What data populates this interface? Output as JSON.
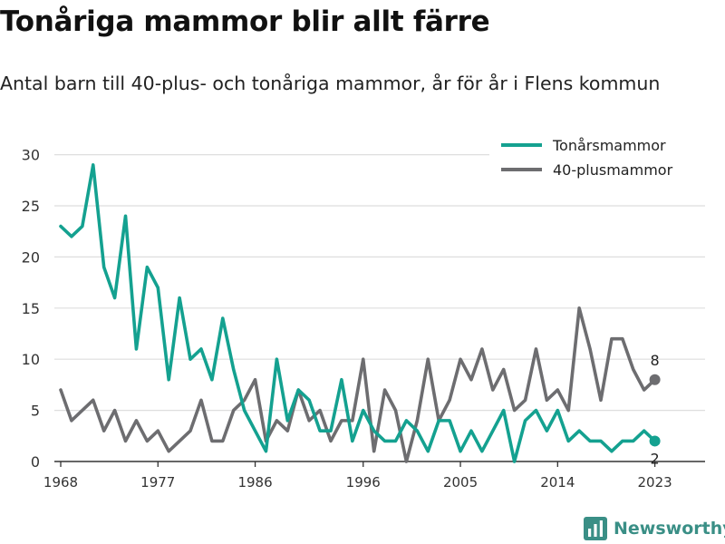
{
  "header": {
    "title": "Tonåriga mammor blir allt färre",
    "subtitle": "Antal barn till 40-plus- och tonåriga mammor, år för år i Flens kommun"
  },
  "brand": {
    "name": "Newsworthy",
    "icon": "bar-chart-logo-icon"
  },
  "colors": {
    "teen": "#14a190",
    "forty": "#6d6d70",
    "grid": "#dedede",
    "axis": "#333333"
  },
  "chart_data": {
    "type": "line",
    "x": [
      1968,
      1969,
      1970,
      1971,
      1972,
      1973,
      1974,
      1975,
      1976,
      1977,
      1978,
      1979,
      1980,
      1981,
      1982,
      1983,
      1984,
      1985,
      1986,
      1987,
      1988,
      1989,
      1990,
      1991,
      1992,
      1993,
      1994,
      1995,
      1996,
      1997,
      1998,
      1999,
      2000,
      2001,
      2002,
      2003,
      2004,
      2005,
      2006,
      2007,
      2008,
      2009,
      2010,
      2011,
      2012,
      2013,
      2014,
      2015,
      2016,
      2017,
      2018,
      2019,
      2020,
      2021,
      2022,
      2023,
      2024
    ],
    "series": [
      {
        "name": "Tonårsmammor",
        "color": "#14a190",
        "values": [
          23,
          22,
          23,
          29,
          19,
          16,
          24,
          11,
          19,
          17,
          8,
          16,
          10,
          11,
          8,
          14,
          9,
          5,
          3,
          1,
          10,
          4,
          7,
          6,
          3,
          3,
          8,
          2,
          5,
          3,
          2,
          2,
          4,
          3,
          1,
          4,
          4,
          1,
          3,
          1,
          3,
          5,
          0,
          4,
          5,
          3,
          5,
          2,
          3,
          2,
          2,
          1,
          2,
          2,
          3,
          2,
          null
        ]
      },
      {
        "name": "40-plusmammor",
        "color": "#6d6d70",
        "values": [
          7,
          4,
          5,
          6,
          3,
          5,
          2,
          4,
          2,
          3,
          1,
          2,
          3,
          6,
          2,
          2,
          5,
          6,
          8,
          2,
          4,
          3,
          7,
          4,
          5,
          2,
          4,
          4,
          10,
          1,
          7,
          5,
          0,
          4,
          10,
          4,
          6,
          10,
          8,
          11,
          7,
          9,
          5,
          6,
          11,
          6,
          7,
          5,
          15,
          11,
          6,
          12,
          12,
          9,
          7,
          8,
          null
        ]
      }
    ],
    "xticks": [
      "1968",
      "1977",
      "1986",
      "1996",
      "2005",
      "2014",
      "2023"
    ],
    "yticks": [
      "0",
      "5",
      "10",
      "15",
      "20",
      "25",
      "30"
    ],
    "ylim": [
      0,
      30
    ],
    "end_labels": {
      "teen": "2",
      "forty": "8"
    },
    "legend_position": "top-right",
    "grid": "horizontal"
  }
}
